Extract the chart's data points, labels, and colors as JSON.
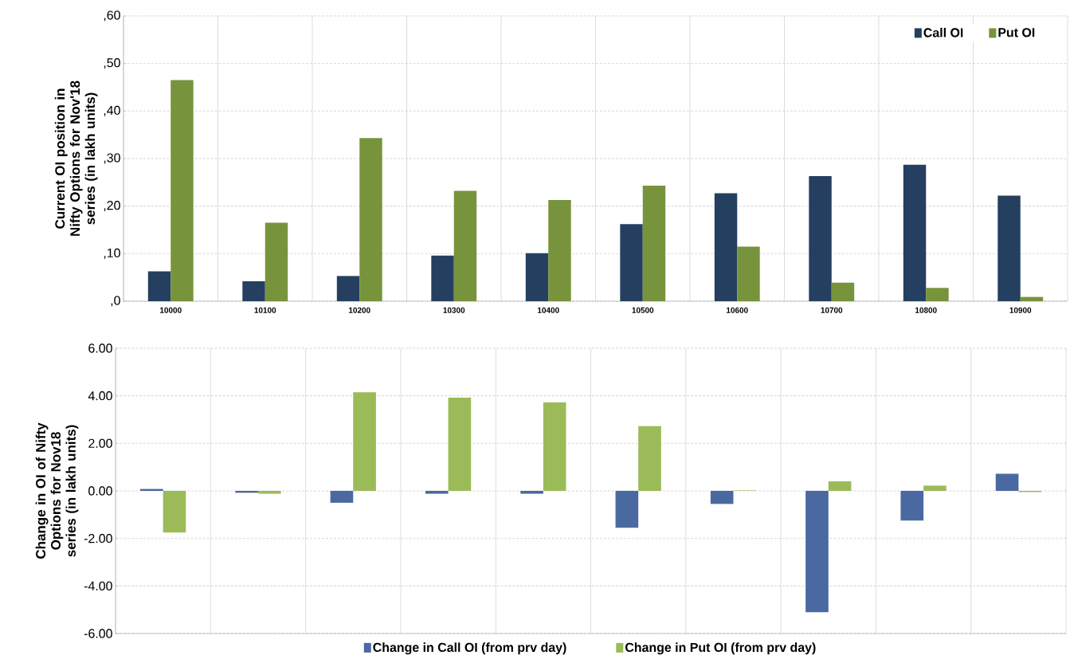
{
  "chart_data": [
    {
      "type": "bar",
      "ylabel": "Current OI position in Nifty Options for Nov'18 series (in lakh units)",
      "categories": [
        "10000",
        "10100",
        "10200",
        "10300",
        "10400",
        "10500",
        "10600",
        "10700",
        "10800",
        "10900"
      ],
      "series": [
        {
          "name": "Call OI",
          "color": "#243f60",
          "values": [
            6.3,
            4.2,
            5.3,
            9.6,
            10.1,
            16.2,
            22.7,
            26.3,
            28.7,
            22.2
          ]
        },
        {
          "name": "Put OI",
          "color": "#77933c",
          "values": [
            46.5,
            16.5,
            34.3,
            23.2,
            21.3,
            24.3,
            11.5,
            3.9,
            2.8,
            0.9
          ]
        }
      ],
      "ylim": [
        0,
        60
      ],
      "yticks": [
        {
          "value": 0,
          "label": ",0"
        },
        {
          "value": 10,
          "label": ",10"
        },
        {
          "value": 20,
          "label": ",20"
        },
        {
          "value": 30,
          "label": ",30"
        },
        {
          "value": 40,
          "label": ",40"
        },
        {
          "value": 50,
          "label": ",50"
        },
        {
          "value": 60,
          "label": ",60"
        }
      ],
      "grid": true,
      "legend": "top right"
    },
    {
      "type": "bar",
      "ylabel": "Change in OI of Nifty Options for Nov18 series (in lakh units)",
      "categories": [
        null,
        null,
        null,
        null,
        null,
        null,
        null,
        null,
        null,
        null
      ],
      "series": [
        {
          "name": "Change in Call OI (from prv day)",
          "color": "#4a69a0",
          "values": [
            0.08,
            -0.08,
            -0.5,
            -0.12,
            -0.12,
            -1.55,
            -0.55,
            -5.1,
            -1.25,
            0.72
          ]
        },
        {
          "name": "Change in Put OI (from prv day)",
          "color": "#9bbb59",
          "values": [
            -1.75,
            -0.12,
            4.15,
            3.92,
            3.72,
            2.72,
            0.02,
            0.4,
            0.22,
            -0.05
          ]
        }
      ],
      "ylim": [
        -6,
        6
      ],
      "yticks": [
        {
          "value": -6,
          "label": "-6.00"
        },
        {
          "value": -4,
          "label": "-4.00"
        },
        {
          "value": -2,
          "label": "-2.00"
        },
        {
          "value": 0,
          "label": "0.00"
        },
        {
          "value": 2,
          "label": "2.00"
        },
        {
          "value": 4,
          "label": "4.00"
        },
        {
          "value": 6,
          "label": "6.00"
        }
      ],
      "grid": true,
      "legend": "bottom",
      "tick_labels": "y"
    }
  ]
}
